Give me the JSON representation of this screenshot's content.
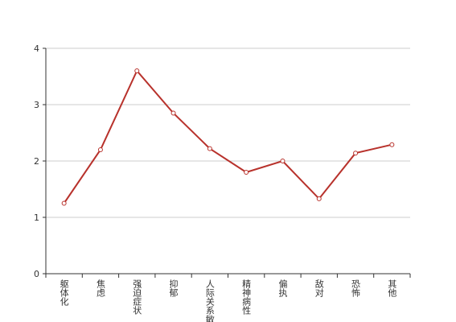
{
  "chart_data": {
    "type": "line",
    "categories": [
      "躯体化",
      "焦虑",
      "强迫症状",
      "抑郁",
      "人际关系敏感",
      "精神病性",
      "偏执",
      "敌对",
      "恐怖",
      "其他"
    ],
    "values": [
      1.25,
      2.2,
      3.6,
      2.85,
      2.22,
      1.8,
      2.0,
      1.33,
      2.14,
      2.29
    ],
    "color": "#b8322c",
    "ylim": [
      0,
      4
    ],
    "yticks": [
      0,
      1,
      2,
      3,
      4
    ],
    "grid": true
  }
}
